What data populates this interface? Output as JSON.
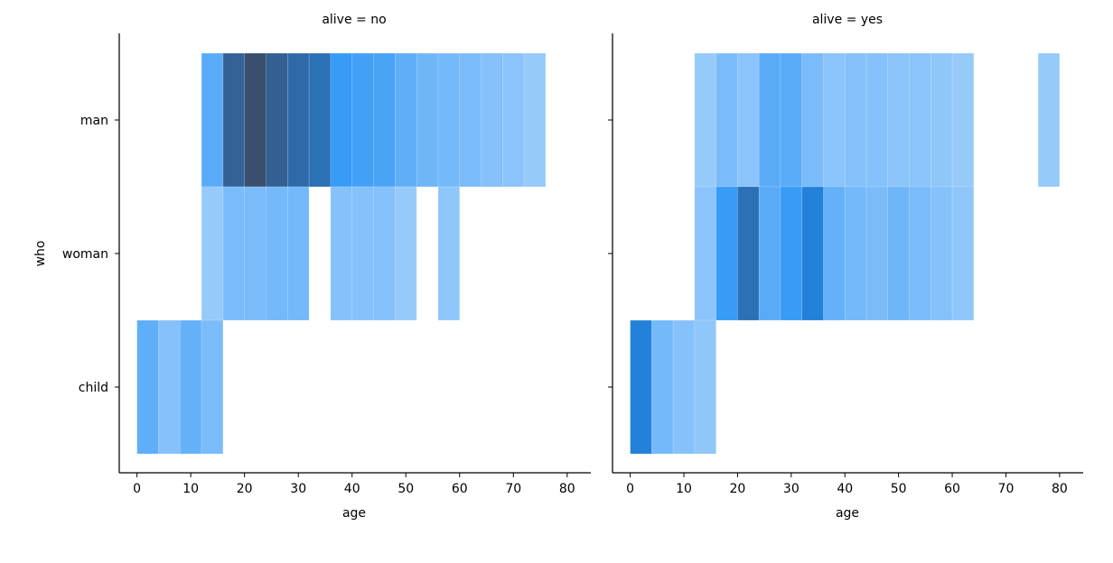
{
  "chart_data": {
    "type": "heatmap",
    "xlabel": "age",
    "ylabel": "who",
    "xlim": [
      -3.3,
      84.4
    ],
    "x_ticks": [
      0,
      10,
      20,
      30,
      40,
      50,
      60,
      70,
      80
    ],
    "bin_width": 4,
    "categories": [
      "man",
      "woman",
      "child"
    ],
    "colors": {
      "base": "#1f8ef5",
      "dark": "#3a4e6e",
      "axis": "#000000"
    },
    "max_count": 45,
    "panels": [
      {
        "title": "alive = no",
        "rows": [
          {
            "category": "man",
            "bins": [
              {
                "x0": 12,
                "count": 16
              },
              {
                "x0": 16,
                "count": 38
              },
              {
                "x0": 20,
                "count": 45
              },
              {
                "x0": 24,
                "count": 39
              },
              {
                "x0": 28,
                "count": 35
              },
              {
                "x0": 32,
                "count": 33
              },
              {
                "x0": 36,
                "count": 22
              },
              {
                "x0": 40,
                "count": 20
              },
              {
                "x0": 44,
                "count": 19
              },
              {
                "x0": 48,
                "count": 15
              },
              {
                "x0": 52,
                "count": 12
              },
              {
                "x0": 56,
                "count": 11
              },
              {
                "x0": 60,
                "count": 10
              },
              {
                "x0": 64,
                "count": 8
              },
              {
                "x0": 68,
                "count": 7
              },
              {
                "x0": 72,
                "count": 5
              }
            ]
          },
          {
            "category": "woman",
            "bins": [
              {
                "x0": 12,
                "count": 5
              },
              {
                "x0": 16,
                "count": 10
              },
              {
                "x0": 20,
                "count": 10
              },
              {
                "x0": 24,
                "count": 11
              },
              {
                "x0": 28,
                "count": 11
              },
              {
                "x0": 36,
                "count": 8
              },
              {
                "x0": 40,
                "count": 8
              },
              {
                "x0": 44,
                "count": 8
              },
              {
                "x0": 48,
                "count": 5
              },
              {
                "x0": 56,
                "count": 6
              }
            ]
          },
          {
            "category": "child",
            "bins": [
              {
                "x0": 0,
                "count": 15
              },
              {
                "x0": 4,
                "count": 8
              },
              {
                "x0": 8,
                "count": 14
              },
              {
                "x0": 12,
                "count": 10
              }
            ]
          }
        ]
      },
      {
        "title": "alive = yes",
        "rows": [
          {
            "category": "man",
            "bins": [
              {
                "x0": 12,
                "count": 5
              },
              {
                "x0": 16,
                "count": 10
              },
              {
                "x0": 20,
                "count": 7
              },
              {
                "x0": 24,
                "count": 16
              },
              {
                "x0": 28,
                "count": 16
              },
              {
                "x0": 32,
                "count": 10
              },
              {
                "x0": 36,
                "count": 7
              },
              {
                "x0": 40,
                "count": 8
              },
              {
                "x0": 44,
                "count": 8
              },
              {
                "x0": 48,
                "count": 7
              },
              {
                "x0": 52,
                "count": 7
              },
              {
                "x0": 56,
                "count": 6
              },
              {
                "x0": 60,
                "count": 5
              },
              {
                "x0": 76,
                "count": 5
              }
            ]
          },
          {
            "category": "woman",
            "bins": [
              {
                "x0": 12,
                "count": 7
              },
              {
                "x0": 16,
                "count": 22
              },
              {
                "x0": 20,
                "count": 33
              },
              {
                "x0": 24,
                "count": 16
              },
              {
                "x0": 28,
                "count": 22
              },
              {
                "x0": 32,
                "count": 27
              },
              {
                "x0": 36,
                "count": 14
              },
              {
                "x0": 40,
                "count": 11
              },
              {
                "x0": 44,
                "count": 10
              },
              {
                "x0": 48,
                "count": 12
              },
              {
                "x0": 52,
                "count": 10
              },
              {
                "x0": 56,
                "count": 8
              },
              {
                "x0": 60,
                "count": 6
              }
            ]
          },
          {
            "category": "child",
            "bins": [
              {
                "x0": 0,
                "count": 27
              },
              {
                "x0": 4,
                "count": 11
              },
              {
                "x0": 8,
                "count": 8
              },
              {
                "x0": 12,
                "count": 6
              }
            ]
          }
        ]
      }
    ]
  }
}
